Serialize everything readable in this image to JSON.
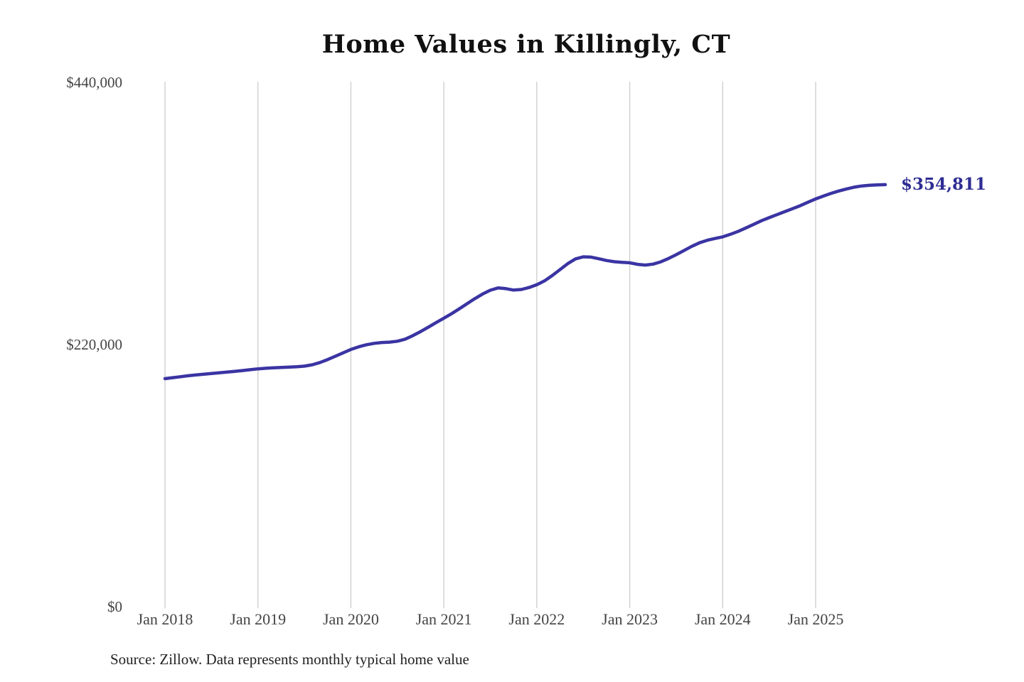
{
  "title": "Home Values in Killingly, CT",
  "source_note": "Source: Zillow. Data represents monthly typical home value",
  "colors": {
    "line": "#3a34a3",
    "end_label": "#2e2d93",
    "gridline": "#cccccc",
    "title_text": "#111111",
    "axis_text": "#444444",
    "source_text": "#222222",
    "background": "#ffffff"
  },
  "chart_data": {
    "type": "line",
    "title": "Home Values in Killingly, CT",
    "xlabel": "",
    "ylabel": "",
    "ylim": [
      0,
      440000
    ],
    "y_ticks": [
      0,
      220000,
      440000
    ],
    "y_tick_labels": [
      "$0",
      "$220,000",
      "$440,000"
    ],
    "x_tick_labels": [
      "Jan 2018",
      "Jan 2019",
      "Jan 2020",
      "Jan 2021",
      "Jan 2022",
      "Jan 2023",
      "Jan 2024",
      "Jan 2025"
    ],
    "grid": "vertical-only",
    "legend": "none",
    "end_annotation": {
      "text": "$354,811",
      "value": 354811,
      "month": "2025-10"
    },
    "series": [
      {
        "name": "Monthly typical home value",
        "months": [
          "2018-01",
          "2018-02",
          "2018-03",
          "2018-04",
          "2018-05",
          "2018-06",
          "2018-07",
          "2018-08",
          "2018-09",
          "2018-10",
          "2018-11",
          "2018-12",
          "2019-01",
          "2019-02",
          "2019-03",
          "2019-04",
          "2019-05",
          "2019-06",
          "2019-07",
          "2019-08",
          "2019-09",
          "2019-10",
          "2019-11",
          "2019-12",
          "2020-01",
          "2020-02",
          "2020-03",
          "2020-04",
          "2020-05",
          "2020-06",
          "2020-07",
          "2020-08",
          "2020-09",
          "2020-10",
          "2020-11",
          "2020-12",
          "2021-01",
          "2021-02",
          "2021-03",
          "2021-04",
          "2021-05",
          "2021-06",
          "2021-07",
          "2021-08",
          "2021-09",
          "2021-10",
          "2021-11",
          "2021-12",
          "2022-01",
          "2022-02",
          "2022-03",
          "2022-04",
          "2022-05",
          "2022-06",
          "2022-07",
          "2022-08",
          "2022-09",
          "2022-10",
          "2022-11",
          "2022-12",
          "2023-01",
          "2023-02",
          "2023-03",
          "2023-04",
          "2023-05",
          "2023-06",
          "2023-07",
          "2023-08",
          "2023-09",
          "2023-10",
          "2023-11",
          "2023-12",
          "2024-01",
          "2024-02",
          "2024-03",
          "2024-04",
          "2024-05",
          "2024-06",
          "2024-07",
          "2024-08",
          "2024-09",
          "2024-10",
          "2024-11",
          "2024-12",
          "2025-01",
          "2025-02",
          "2025-03",
          "2025-04",
          "2025-05",
          "2025-06",
          "2025-07",
          "2025-08",
          "2025-09",
          "2025-10"
        ],
        "values": [
          192000,
          192800,
          193600,
          194400,
          195100,
          195700,
          196300,
          196900,
          197500,
          198100,
          198800,
          199500,
          200200,
          200700,
          201100,
          201400,
          201700,
          202000,
          202500,
          203600,
          205500,
          208000,
          210800,
          213600,
          216500,
          218700,
          220400,
          221600,
          222300,
          222600,
          223400,
          225100,
          228100,
          231500,
          235200,
          239000,
          242700,
          246500,
          250600,
          254900,
          259100,
          263000,
          266200,
          268100,
          267500,
          266300,
          266800,
          268500,
          270800,
          274100,
          278500,
          283500,
          288500,
          292500,
          294200,
          294000,
          292600,
          291100,
          290100,
          289600,
          289200,
          287900,
          287300,
          288100,
          290000,
          292800,
          296000,
          299500,
          303000,
          306000,
          308100,
          309600,
          311000,
          313100,
          315600,
          318500,
          321500,
          324500,
          327100,
          329600,
          332100,
          334600,
          337100,
          340000,
          342800,
          345200,
          347500,
          349500,
          351200,
          352700,
          353700,
          354300,
          354600,
          354811
        ]
      }
    ]
  }
}
